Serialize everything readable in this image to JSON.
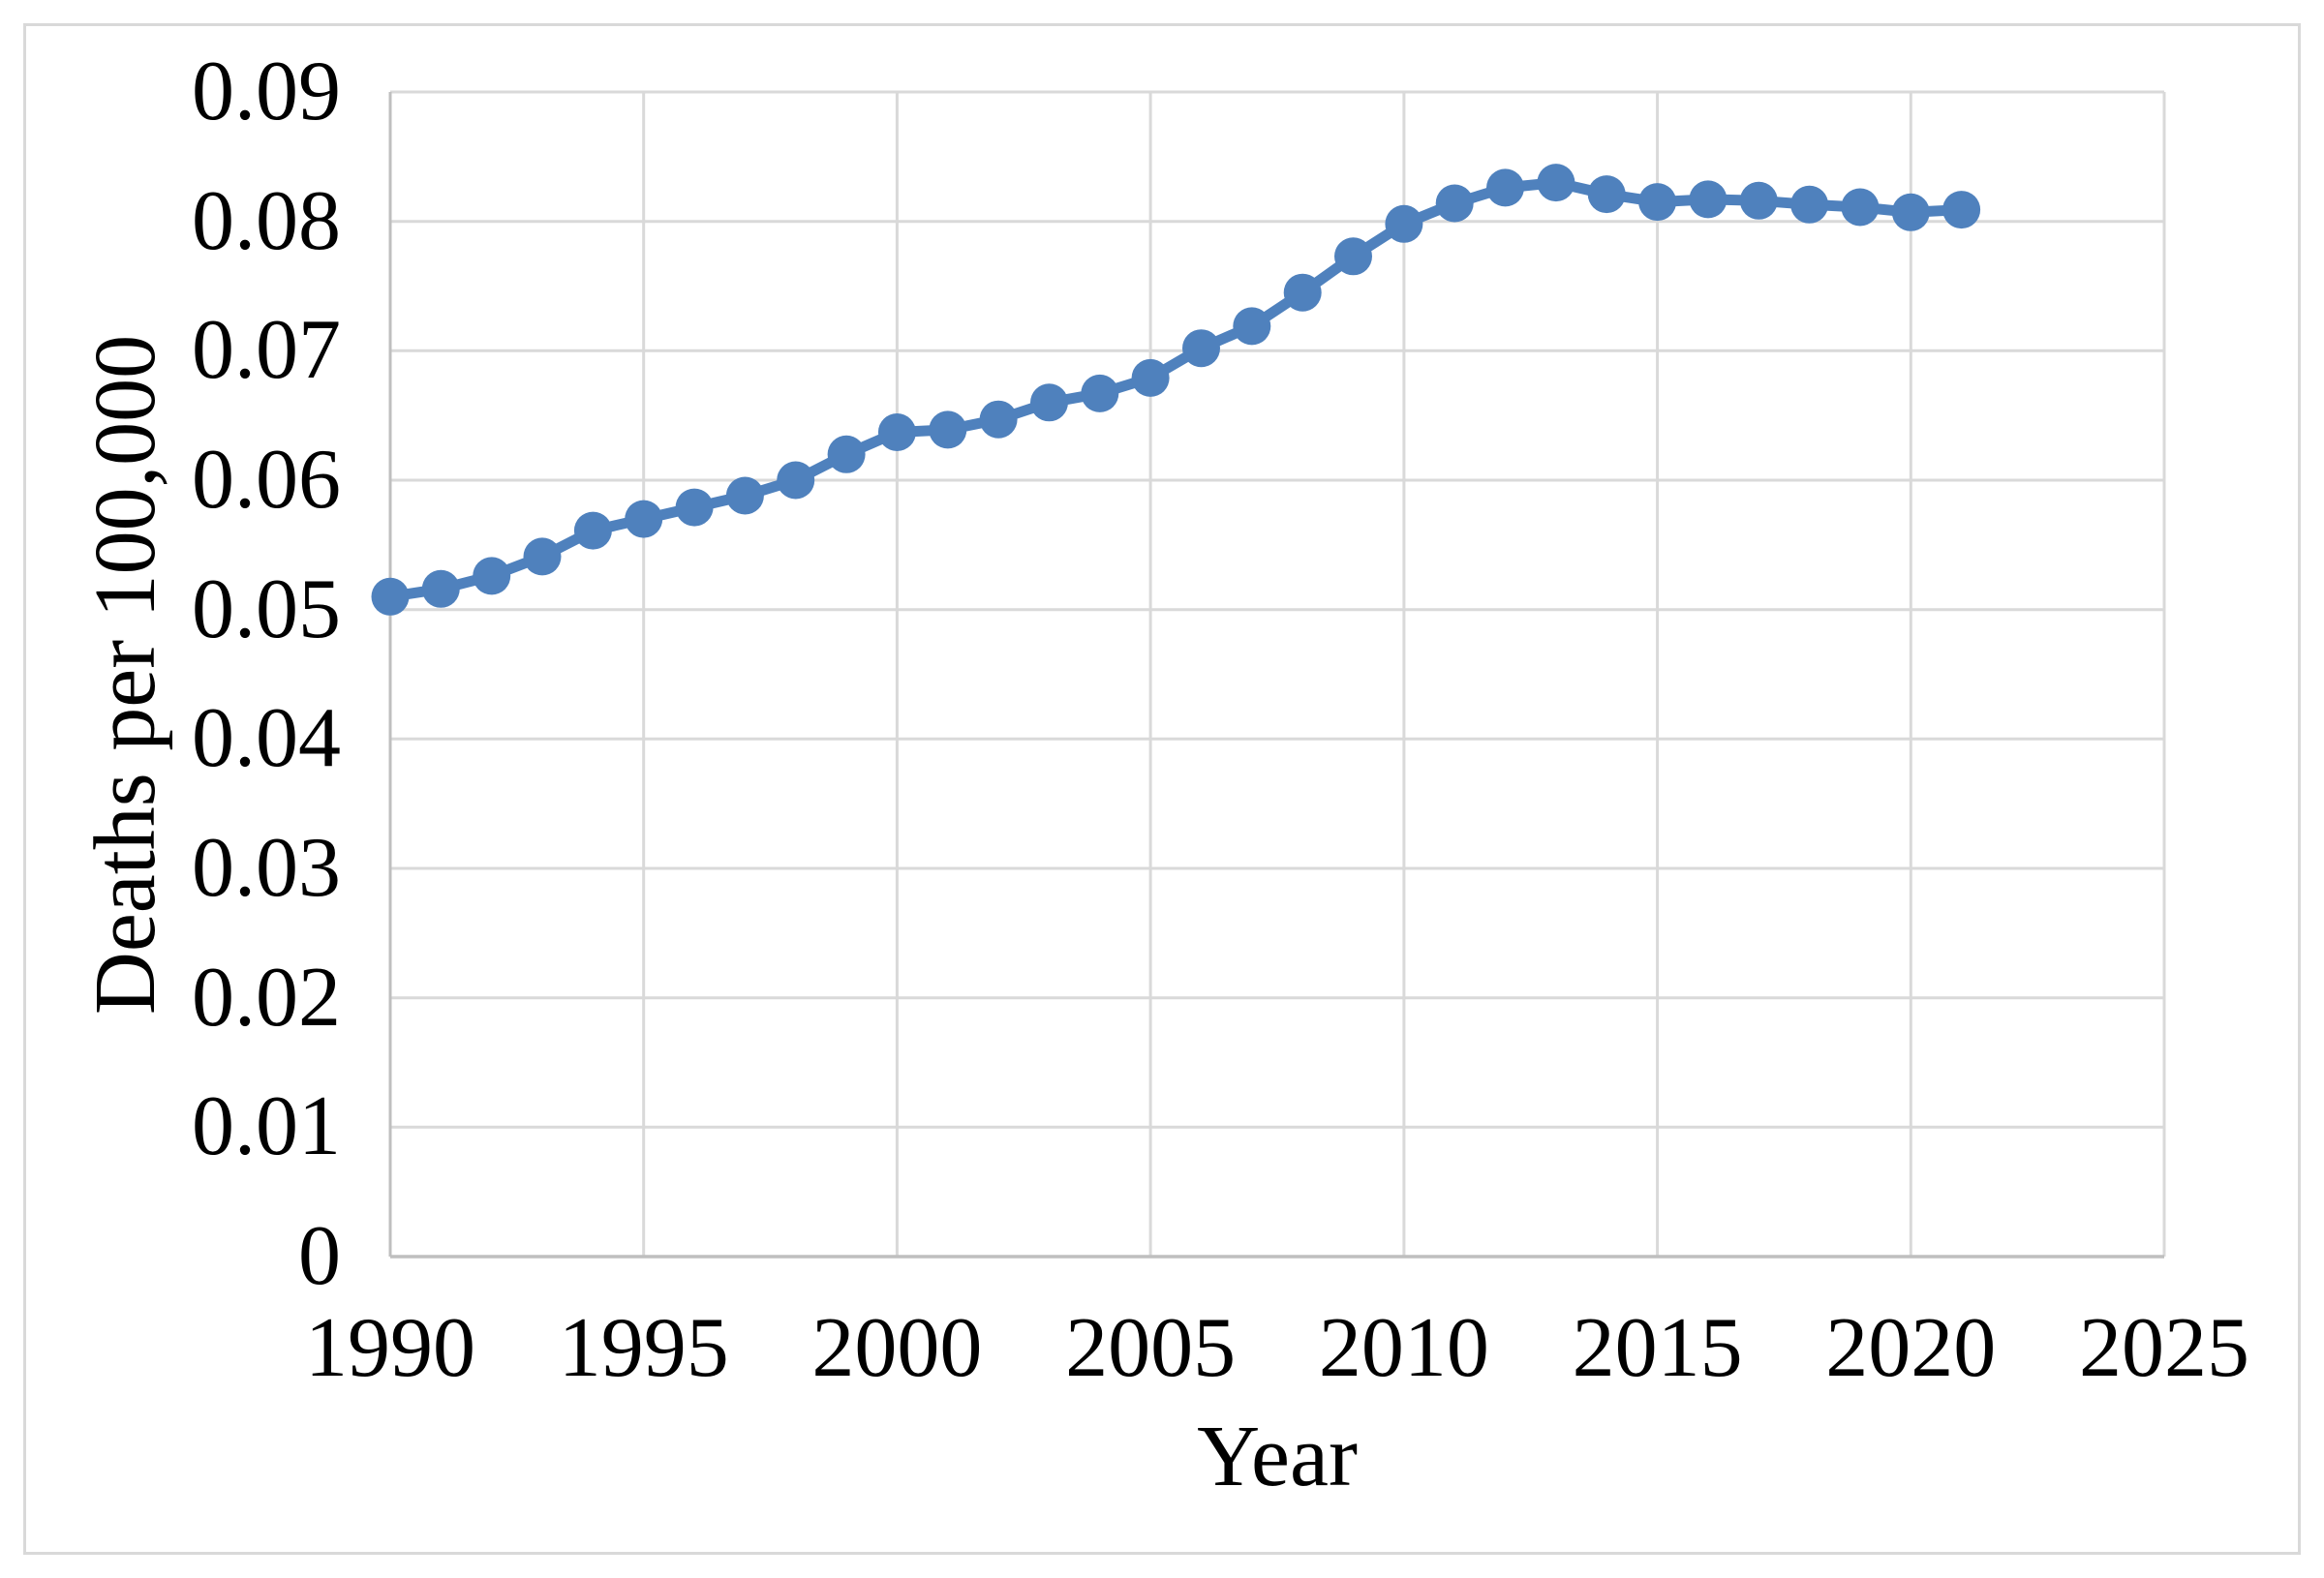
{
  "chart_data": {
    "type": "line",
    "title": "",
    "xlabel": "Year",
    "ylabel": "Deaths per 100,000",
    "x": [
      1990,
      1991,
      1992,
      1993,
      1994,
      1995,
      1996,
      1997,
      1998,
      1999,
      2000,
      2001,
      2002,
      2003,
      2004,
      2005,
      2006,
      2007,
      2008,
      2009,
      2010,
      2011,
      2012,
      2013,
      2014,
      2015,
      2016,
      2017,
      2018,
      2019,
      2020,
      2021
    ],
    "series": [
      {
        "name": "Deaths per 100,000",
        "values": [
          0.051,
          0.0516,
          0.0526,
          0.0541,
          0.0561,
          0.057,
          0.0579,
          0.0588,
          0.06,
          0.062,
          0.0637,
          0.0639,
          0.0647,
          0.066,
          0.0667,
          0.0679,
          0.0702,
          0.0719,
          0.0745,
          0.0773,
          0.0798,
          0.0814,
          0.0826,
          0.083,
          0.0821,
          0.0815,
          0.0817,
          0.0816,
          0.0813,
          0.0811,
          0.0807,
          0.0809
        ]
      }
    ],
    "xlim": [
      1990,
      2025
    ],
    "ylim": [
      0,
      0.09
    ],
    "xticks": [
      1990,
      1995,
      2000,
      2005,
      2010,
      2015,
      2020,
      2025
    ],
    "ytick_values": [
      0,
      0.01,
      0.02,
      0.03,
      0.04,
      0.05,
      0.06,
      0.07,
      0.08,
      0.09
    ],
    "ytick_labels": [
      "0",
      "0.01",
      "0.02",
      "0.03",
      "0.04",
      "0.05",
      "0.06",
      "0.07",
      "0.08",
      "0.09"
    ],
    "grid": true,
    "legend": false,
    "colors": {
      "line": "#4F81BD",
      "marker": "#4F81BD",
      "gridline": "#D9D9D9",
      "axis_line": "#BFBFBF",
      "text": "#000000",
      "frame_border": "#D9D9D9",
      "background": "#FFFFFF"
    }
  }
}
